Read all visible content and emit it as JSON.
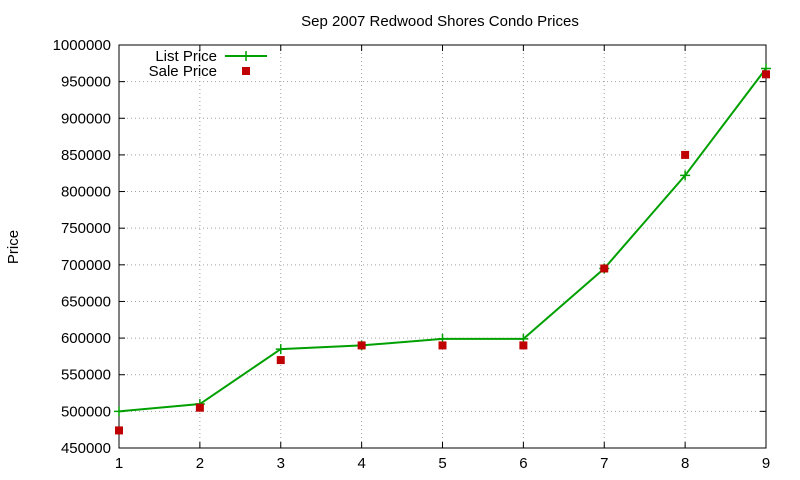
{
  "chart_data": {
    "type": "line",
    "title": "Sep 2007 Redwood Shores Condo Prices",
    "xlabel": "",
    "ylabel": "Price",
    "x": [
      1,
      2,
      3,
      4,
      5,
      6,
      7,
      8,
      9
    ],
    "xlim": [
      1,
      9
    ],
    "ylim": [
      450000,
      1000000
    ],
    "x_ticks": [
      "1",
      "2",
      "3",
      "4",
      "5",
      "6",
      "7",
      "8",
      "9"
    ],
    "y_ticks": [
      "450000",
      "500000",
      "550000",
      "600000",
      "650000",
      "700000",
      "750000",
      "800000",
      "850000",
      "900000",
      "950000",
      "1000000"
    ],
    "grid": true,
    "legend_position": "top-left",
    "series": [
      {
        "name": "List Price",
        "style": "line-with-plus-markers",
        "color": "#00a000",
        "values": [
          500000,
          510000,
          585000,
          590000,
          599000,
          599000,
          695000,
          822000,
          968000
        ]
      },
      {
        "name": "Sale Price",
        "style": "square-markers",
        "color": "#c00000",
        "values": [
          474000,
          505000,
          570000,
          590000,
          590000,
          590000,
          695000,
          850000,
          960000
        ]
      }
    ]
  }
}
